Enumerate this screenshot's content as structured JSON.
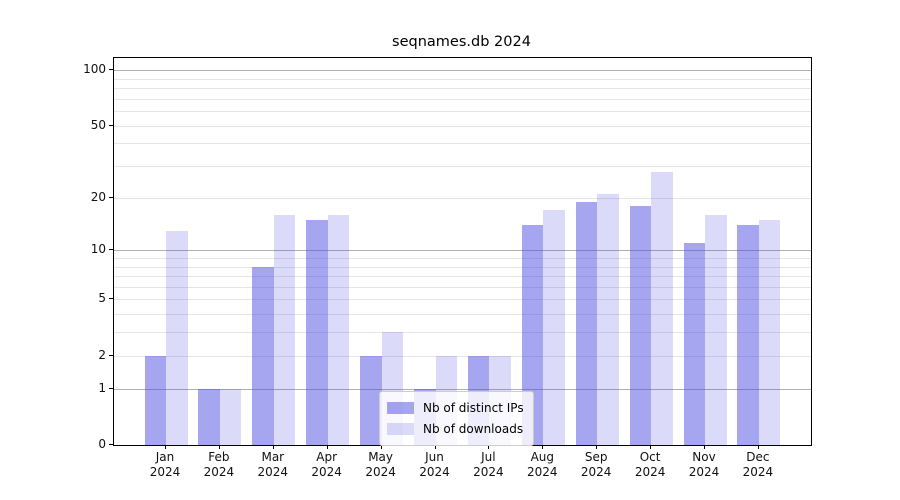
{
  "chart_data": {
    "type": "bar",
    "title": "seqnames.db 2024",
    "categories": [
      "Jan",
      "Feb",
      "Mar",
      "Apr",
      "May",
      "Jun",
      "Jul",
      "Aug",
      "Sep",
      "Oct",
      "Nov",
      "Dec"
    ],
    "category_year": "2024",
    "series": [
      {
        "name": "Nb of distinct IPs",
        "values": [
          2,
          1,
          8,
          15,
          2,
          1,
          2,
          14,
          19,
          18,
          11,
          14
        ],
        "color": "rgba(75,75,225,0.5)"
      },
      {
        "name": "Nb of downloads",
        "values": [
          13,
          1,
          16,
          16,
          3,
          2,
          2,
          17,
          21,
          28,
          16,
          15
        ],
        "color": "rgba(75,75,225,0.2)"
      }
    ],
    "xlabel": "",
    "ylabel": "",
    "yscale": "log1p",
    "ylim": [
      0,
      115
    ],
    "ytick_labels": [
      "0",
      "1",
      "2",
      "5",
      "10",
      "20",
      "50",
      "100"
    ],
    "ytick_values": [
      0,
      1,
      2,
      5,
      10,
      20,
      50,
      100
    ],
    "major_gridlines": [
      1,
      10,
      100
    ],
    "minor_gridlines": [
      2,
      3,
      4,
      5,
      6,
      7,
      8,
      9,
      20,
      30,
      40,
      50,
      60,
      70,
      80,
      90
    ],
    "grid": true,
    "legend_position": "inside-lower-center"
  },
  "legend": {
    "items": [
      {
        "label": "Nb of distinct IPs"
      },
      {
        "label": "Nb of downloads"
      }
    ]
  },
  "colors": {
    "bar_distinct_ips": "rgba(75,75,225,0.5)",
    "bar_downloads": "rgba(75,75,225,0.2)",
    "grid_major": "#b0b0b0",
    "grid_minor": "#e5e5e5",
    "axis": "#000000",
    "background": "#ffffff"
  }
}
